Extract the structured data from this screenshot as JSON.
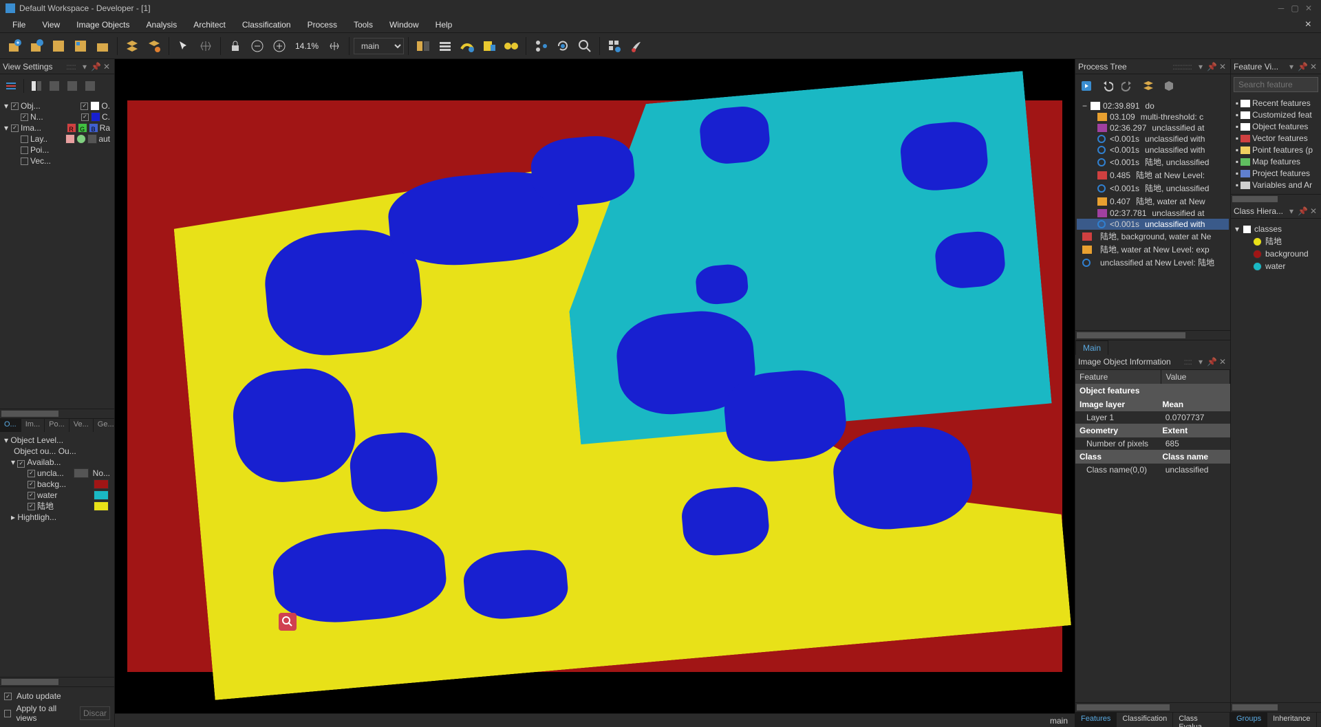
{
  "titlebar": {
    "text": "Default Workspace - Developer - [1]"
  },
  "menus": [
    "File",
    "View",
    "Image Objects",
    "Analysis",
    "Architect",
    "Classification",
    "Process",
    "Tools",
    "Window",
    "Help"
  ],
  "toolbar": {
    "zoom_pct": "14.1%",
    "level": "main",
    "level_name": "main"
  },
  "view_settings": {
    "title": "View Settings",
    "rows": [
      {
        "indent": 0,
        "checked": true,
        "label": "Obj...",
        "swatch_label": "O.",
        "swatch": "#ffffff"
      },
      {
        "indent": 1,
        "checked": true,
        "label": "N...",
        "swatch_label": "C.",
        "swatch": "#1820d0"
      },
      {
        "indent": 0,
        "checked": true,
        "label": "Ima...",
        "rgb": true,
        "extra": "Ra"
      },
      {
        "indent": 1,
        "checked": false,
        "label": "Lay..",
        "dots": true,
        "extra": "aut"
      },
      {
        "indent": 1,
        "checked": false,
        "label": "Poi..."
      },
      {
        "indent": 1,
        "checked": false,
        "label": "Vec..."
      }
    ]
  },
  "layer_tabs": [
    "O...",
    "Im...",
    "Po...",
    "Ve...",
    "Ge..."
  ],
  "object_level": {
    "header": "Object Level...",
    "outline": "Object ou...   Ou...",
    "avail": "Availab...",
    "classes": [
      {
        "name": "uncla...",
        "swatch": "#555555",
        "extra": "No..."
      },
      {
        "name": "backg...",
        "swatch": "#a11515"
      },
      {
        "name": "water",
        "swatch": "#1ab8c4"
      },
      {
        "name": "陆地",
        "swatch": "#e8e118"
      }
    ],
    "highlight": "Hightligh..."
  },
  "footer": {
    "auto_update": "Auto update",
    "apply_all": "Apply to all views",
    "discard": "Discar"
  },
  "process_tree": {
    "title": "Process Tree",
    "rows": [
      {
        "indent": 0,
        "time": "02:39.891",
        "desc": "do",
        "exp": "−",
        "ico": "#ffffff"
      },
      {
        "indent": 1,
        "time": "03.109",
        "desc": "multi-threshold: c",
        "ico": "#e8a030"
      },
      {
        "indent": 1,
        "time": "02:36.297",
        "desc": "unclassified at",
        "ico": "#a040a0"
      },
      {
        "indent": 1,
        "time": "<0.001s",
        "desc": "unclassified with",
        "ico": "#3080d0",
        "circ": true
      },
      {
        "indent": 1,
        "time": "<0.001s",
        "desc": "unclassified with",
        "ico": "#3080d0",
        "circ": true
      },
      {
        "indent": 1,
        "time": "<0.001s",
        "desc": "陆地, unclassified",
        "ico": "#3080d0",
        "circ": true
      },
      {
        "indent": 1,
        "time": "0.485",
        "desc": "陆地 at  New Level:",
        "ico": "#d04040"
      },
      {
        "indent": 1,
        "time": "<0.001s",
        "desc": "陆地, unclassified",
        "ico": "#3080d0",
        "circ": true
      },
      {
        "indent": 1,
        "time": "0.407",
        "desc": "陆地, water at  New",
        "ico": "#e8a030"
      },
      {
        "indent": 1,
        "time": "02:37.781",
        "desc": "unclassified at",
        "ico": "#a040a0"
      },
      {
        "indent": 1,
        "time": "<0.001s",
        "desc": "unclassified with",
        "ico": "#3080d0",
        "circ": true,
        "sel": true
      },
      {
        "indent": 0,
        "time": "",
        "desc": "陆地, background, water at  Ne",
        "ico": "#d04040"
      },
      {
        "indent": 0,
        "time": "",
        "desc": "陆地, water at  New Level: exp",
        "ico": "#e8a030"
      },
      {
        "indent": 0,
        "time": "",
        "desc": "unclassified at  New Level: 陆地",
        "ico": "#3080d0",
        "circ": true
      }
    ],
    "main_tab": "Main"
  },
  "obj_info": {
    "title": "Image Object Information",
    "headers": [
      "Feature",
      "Value"
    ],
    "groups": [
      {
        "cat": "Object features",
        "full": true
      },
      {
        "cat": "Image layer",
        "val": "Mean",
        "rows": [
          [
            "Layer 1",
            "0.0707737"
          ]
        ]
      },
      {
        "cat": "Geometry",
        "val": "Extent",
        "rows": [
          [
            "Number of pixels",
            "685"
          ]
        ]
      },
      {
        "cat": "Class",
        "val": "Class name",
        "rows": [
          [
            "Class name(0,0)",
            "unclassified"
          ]
        ]
      }
    ]
  },
  "obj_info_tabs": [
    "Features",
    "Classification",
    "Class Evalua..."
  ],
  "feature_view": {
    "title": "Feature Vi...",
    "search_placeholder": "Search feature",
    "items": [
      {
        "label": "Recent features",
        "ico": "#ffffff"
      },
      {
        "label": "Customized feat",
        "ico": "#ffffff"
      },
      {
        "label": "Object features",
        "ico": "#ffffff"
      },
      {
        "label": "Vector features",
        "ico": "#d04040"
      },
      {
        "label": "Point features (p",
        "ico": "#f0d060"
      },
      {
        "label": "Map features",
        "ico": "#60c060"
      },
      {
        "label": "Project features",
        "ico": "#6080d0"
      },
      {
        "label": "Variables and Ar",
        "ico": "#d0d0d0"
      }
    ]
  },
  "class_hier": {
    "title": "Class Hiera...",
    "root": "classes",
    "items": [
      {
        "name": "陆地",
        "color": "#e8e118"
      },
      {
        "name": "background",
        "color": "#a11515"
      },
      {
        "name": "water",
        "color": "#1ab8c4"
      }
    ],
    "tabs": [
      "Groups",
      "Inheritance"
    ]
  },
  "status": {
    "level": "main"
  },
  "colors": {
    "water": "#1ab8c4",
    "land": "#e8e118",
    "boundary": "#1820d0",
    "background": "#a11515"
  }
}
